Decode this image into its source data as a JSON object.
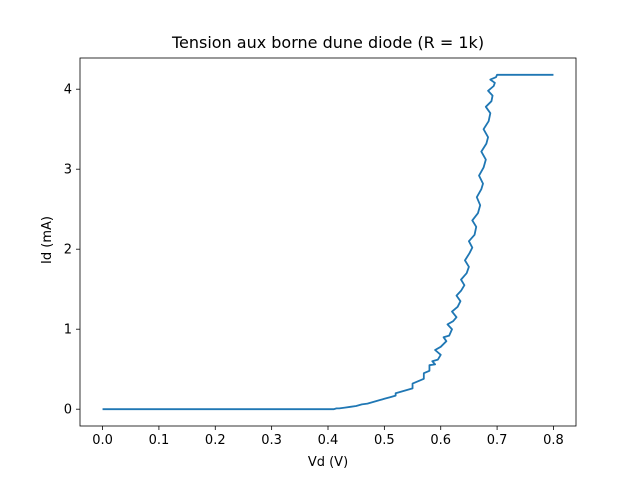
{
  "chart_data": {
    "type": "line",
    "title": "Tension aux borne dune diode (R = 1k)",
    "xlabel": "Vd (V)",
    "ylabel": "Id (mA)",
    "xlim": [
      -0.04,
      0.84
    ],
    "ylim": [
      -0.21,
      4.39
    ],
    "x_ticks": [
      0.0,
      0.1,
      0.2,
      0.3,
      0.4,
      0.5,
      0.6,
      0.7,
      0.8
    ],
    "x_tick_labels": [
      "0.0",
      "0.1",
      "0.2",
      "0.3",
      "0.4",
      "0.5",
      "0.6",
      "0.7",
      "0.8"
    ],
    "y_ticks": [
      0,
      1,
      2,
      3,
      4
    ],
    "y_tick_labels": [
      "0",
      "1",
      "2",
      "3",
      "4"
    ],
    "grid": false,
    "line_color": "#1f77b4",
    "series": [
      {
        "x": [
          0.0,
          0.41,
          0.415,
          0.42,
          0.43,
          0.44,
          0.45,
          0.46,
          0.47,
          0.48,
          0.49,
          0.5,
          0.51,
          0.52,
          0.52,
          0.53,
          0.54,
          0.55,
          0.55,
          0.56,
          0.57,
          0.57,
          0.58,
          0.58,
          0.59,
          0.585,
          0.595,
          0.6,
          0.59,
          0.6,
          0.61,
          0.605,
          0.615,
          0.62,
          0.612,
          0.622,
          0.628,
          0.62,
          0.63,
          0.635,
          0.628,
          0.636,
          0.642,
          0.636,
          0.646,
          0.65,
          0.643,
          0.651,
          0.656,
          0.65,
          0.66,
          0.663,
          0.656,
          0.666,
          0.67,
          0.664,
          0.672,
          0.675,
          0.668,
          0.676,
          0.68,
          0.672,
          0.681,
          0.684,
          0.676,
          0.685,
          0.688,
          0.68,
          0.69,
          0.692,
          0.684,
          0.694,
          0.696,
          0.688,
          0.698,
          0.7,
          0.7,
          0.8
        ],
        "y": [
          0.0,
          0.0,
          0.01,
          0.01,
          0.02,
          0.03,
          0.04,
          0.06,
          0.07,
          0.09,
          0.11,
          0.13,
          0.15,
          0.17,
          0.2,
          0.22,
          0.24,
          0.26,
          0.32,
          0.35,
          0.38,
          0.45,
          0.48,
          0.55,
          0.56,
          0.6,
          0.62,
          0.68,
          0.74,
          0.78,
          0.85,
          0.9,
          0.92,
          1.0,
          1.06,
          1.1,
          1.15,
          1.22,
          1.28,
          1.35,
          1.42,
          1.48,
          1.55,
          1.62,
          1.7,
          1.78,
          1.86,
          1.95,
          2.02,
          2.1,
          2.18,
          2.28,
          2.36,
          2.45,
          2.55,
          2.65,
          2.75,
          2.82,
          2.92,
          3.02,
          3.12,
          3.22,
          3.32,
          3.4,
          3.5,
          3.6,
          3.7,
          3.78,
          3.85,
          3.92,
          3.98,
          4.04,
          4.08,
          4.12,
          4.15,
          4.18,
          4.18,
          4.18
        ]
      }
    ]
  }
}
